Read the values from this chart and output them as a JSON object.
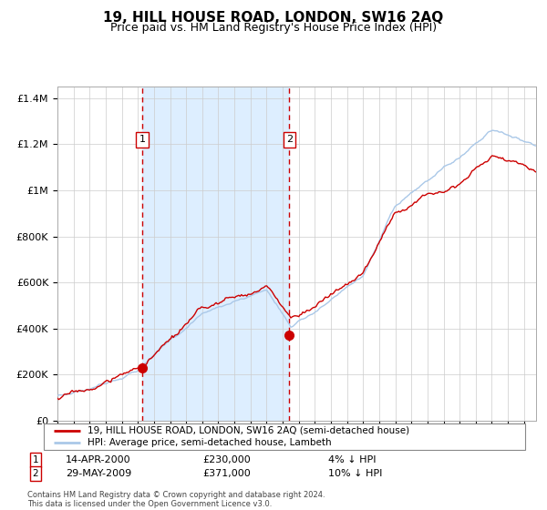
{
  "title": "19, HILL HOUSE ROAD, LONDON, SW16 2AQ",
  "subtitle": "Price paid vs. HM Land Registry's House Price Index (HPI)",
  "title_fontsize": 11,
  "subtitle_fontsize": 9,
  "background_color": "#ffffff",
  "grid_color": "#cccccc",
  "hpi_line_color": "#aac8e8",
  "price_line_color": "#cc0000",
  "shade_color": "#ddeeff",
  "purchase1_date_num": 2000.28,
  "purchase1_price": 230000,
  "purchase1_label": "1",
  "purchase2_date_num": 2009.42,
  "purchase2_price": 371000,
  "purchase2_label": "2",
  "legend_line1": "19, HILL HOUSE ROAD, LONDON, SW16 2AQ (semi-detached house)",
  "legend_line2": "HPI: Average price, semi-detached house, Lambeth",
  "note1_num": "1",
  "note1_date": "14-APR-2000",
  "note1_price": "£230,000",
  "note1_hpi": "4% ↓ HPI",
  "note2_num": "2",
  "note2_date": "29-MAY-2009",
  "note2_price": "£371,000",
  "note2_hpi": "10% ↓ HPI",
  "footer": "Contains HM Land Registry data © Crown copyright and database right 2024.\nThis data is licensed under the Open Government Licence v3.0.",
  "ylim": [
    0,
    1450000
  ],
  "xlim_start": 1995.0,
  "xlim_end": 2024.75,
  "yticks": [
    0,
    200000,
    400000,
    600000,
    800000,
    1000000,
    1200000,
    1400000
  ]
}
